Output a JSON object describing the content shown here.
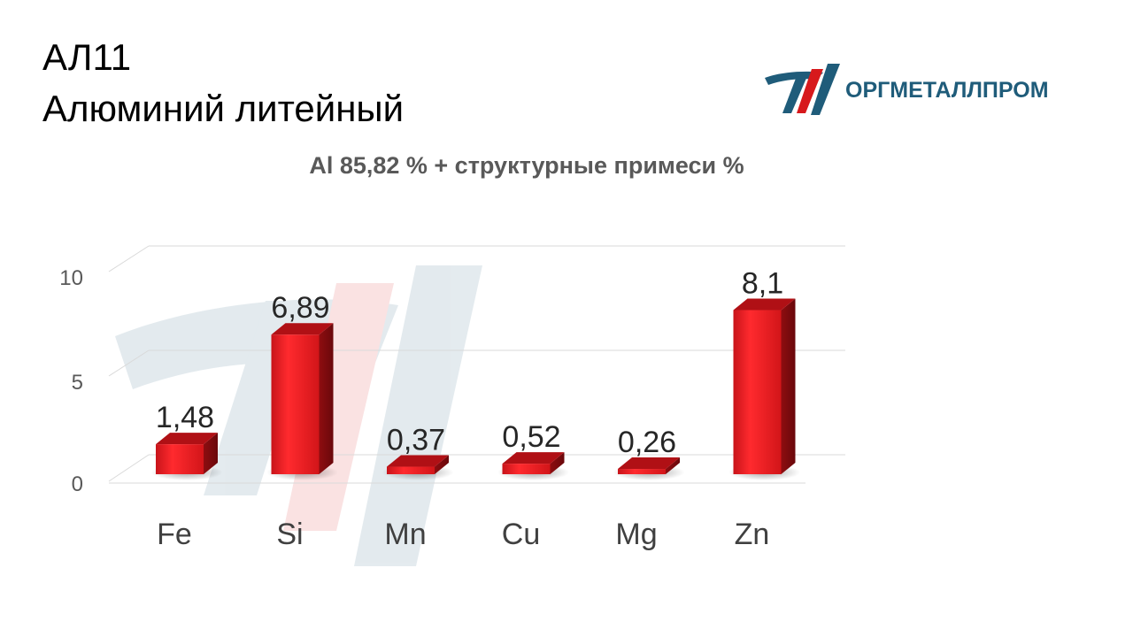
{
  "title": {
    "line1": "АЛ11",
    "line2": "Алюминий литейный"
  },
  "logo": {
    "text": "ОРГМЕТАЛЛПРОМ",
    "colors": {
      "teal": "#1f5c7a",
      "red": "#d7191c"
    }
  },
  "chart_data": {
    "type": "bar",
    "title": "Al 85,82 % + структурные примеси %",
    "categories": [
      "Fe",
      "Si",
      "Mn",
      "Cu",
      "Mg",
      "Zn"
    ],
    "values": [
      1.48,
      6.89,
      0.37,
      0.52,
      0.26,
      8.1
    ],
    "data_labels": [
      "1,48",
      "6,89",
      "0,37",
      "0,52",
      "0,26",
      "8,1"
    ],
    "y_ticks": [
      "0",
      "5",
      "10"
    ],
    "ylim": [
      0,
      10
    ],
    "grid": true,
    "style": "3d-column",
    "bar_color": "#e8191d"
  }
}
